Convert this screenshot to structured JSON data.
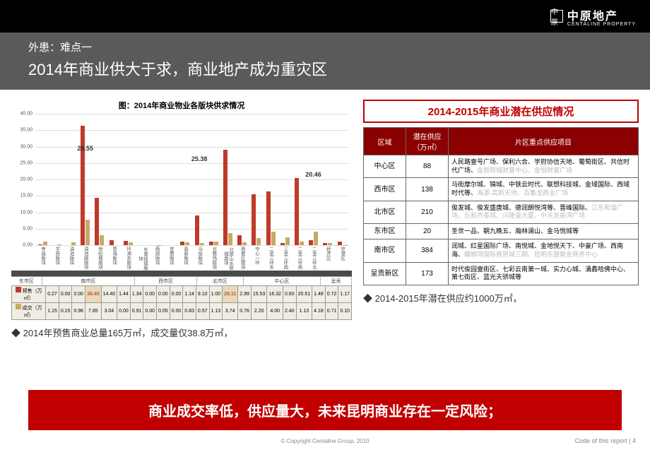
{
  "logo": {
    "mark": "中原",
    "cn": "中原地产",
    "en": "CENTALINE PROPERTY"
  },
  "title": {
    "line1": "外患：难点一",
    "line2": "2014年商业供大于求，商业地产成为重灾区"
  },
  "chart": {
    "title": "图：2014年商业物业各版块供求情况",
    "ymax": 40,
    "ystep": 5,
    "labels_on": [
      {
        "i": 3,
        "v": "28.55",
        "y": 71
      },
      {
        "i": 11,
        "v": "25.38",
        "y": 63
      },
      {
        "i": 19,
        "v": "20.46",
        "y": 51
      }
    ],
    "categories": [
      "寺庙版块",
      "学府版块",
      "滇池版块",
      "滇池路版块",
      "世纪城版块",
      "草海版块",
      "环湖东版块",
      "东南绕城版块",
      "西部版块",
      "宜居版块",
      "高新版块",
      "马街版块",
      "北教场版块",
      "北部山水新城版块",
      "西要区版块",
      "中心一环",
      "二至三环东",
      "三至三环西",
      "二至三环南",
      "二至三环北",
      "经开区",
      "空港区"
    ],
    "regions": [
      {
        "name": "东市区",
        "span": 2
      },
      {
        "name": "南市区",
        "span": 6
      },
      {
        "name": "西市区",
        "span": 4
      },
      {
        "name": "北市区",
        "span": 3
      },
      {
        "name": "中心区",
        "span": 5
      },
      {
        "name": "呈贡",
        "span": 2
      }
    ],
    "series": [
      {
        "name": "预售（万㎡）",
        "color": "#c0392b",
        "values": [
          0.27,
          0.0,
          0.0,
          36.4,
          14.4,
          1.44,
          1.34,
          0.0,
          0.0,
          0.0,
          1.14,
          9.1,
          1.0,
          29.11,
          2.99,
          15.53,
          16.32,
          0.6,
          20.51,
          1.48,
          0.72,
          1.17
        ],
        "hl": [
          3,
          13
        ]
      },
      {
        "name": "成交（万㎡）",
        "color": "#c9a866",
        "values": [
          1.15,
          0.15,
          0.96,
          7.85,
          3.04,
          0.0,
          0.91,
          0.0,
          0.05,
          0.0,
          0.83,
          0.57,
          1.13,
          3.74,
          0.76,
          2.2,
          4.0,
          2.4,
          1.13,
          4.18,
          0.71,
          0.1
        ]
      }
    ]
  },
  "left_bullet": "◆ 2014年预售商业总量165万㎡，成交量仅38.8万㎡，",
  "supply": {
    "title": "2014-2015年商业潜在供应情况",
    "headers": [
      "区域",
      "潜在供应（万㎡）",
      "片区重点供应项目"
    ],
    "rows": [
      {
        "area": "中心区",
        "val": "88",
        "proj": "人民路壹号广场、保利六合、学府协信天地、葡萄街区、共信时代广场、<span class='faded'>金丽熙城财富中心、金恒财富广场</span>"
      },
      {
        "area": "西市区",
        "val": "138",
        "proj": "马街摩尔城、锦城、中铁云时代、联想科技城、金域国际、西域时代等、<span class='faded'>海源·高新天地、百集龙商业广场</span>"
      },
      {
        "area": "北市区",
        "val": "210",
        "proj": "俊发城、俊发盛唐城、德润朗悦湾等、晋峰国际、<span class='faded'>江东和谐广场、巨和齐泰城、兴隆皇大厦、中天龙泉湾广场</span>"
      },
      {
        "area": "东市区",
        "val": "20",
        "proj": "圣世一品、朝九晚五、瀚林澜山、金马悦城等"
      },
      {
        "area": "南市区",
        "val": "384",
        "proj": "润城、红星国际广场、南悦城、金地悦天下、中豪广场、西南海、<span class='faded'>螺蛳湾国际商贸城三期、昆明东盟紫金商务中心</span>"
      },
      {
        "area": "呈贡新区",
        "val": "173",
        "proj": "时代俊园壹街区、七彩云南第一城、实力心城、涌鑫哈佛中心、第七街区、蓝光天骄城等"
      }
    ]
  },
  "right_bullet": "◆ 2014-2015年潜在供应约1000万㎡，",
  "conclusion": "商业成交率低，供应量大，未来昆明商业存在一定风险；",
  "footer": "© Copyright Centaline Group, 2010",
  "page": "Code of this report | 4"
}
